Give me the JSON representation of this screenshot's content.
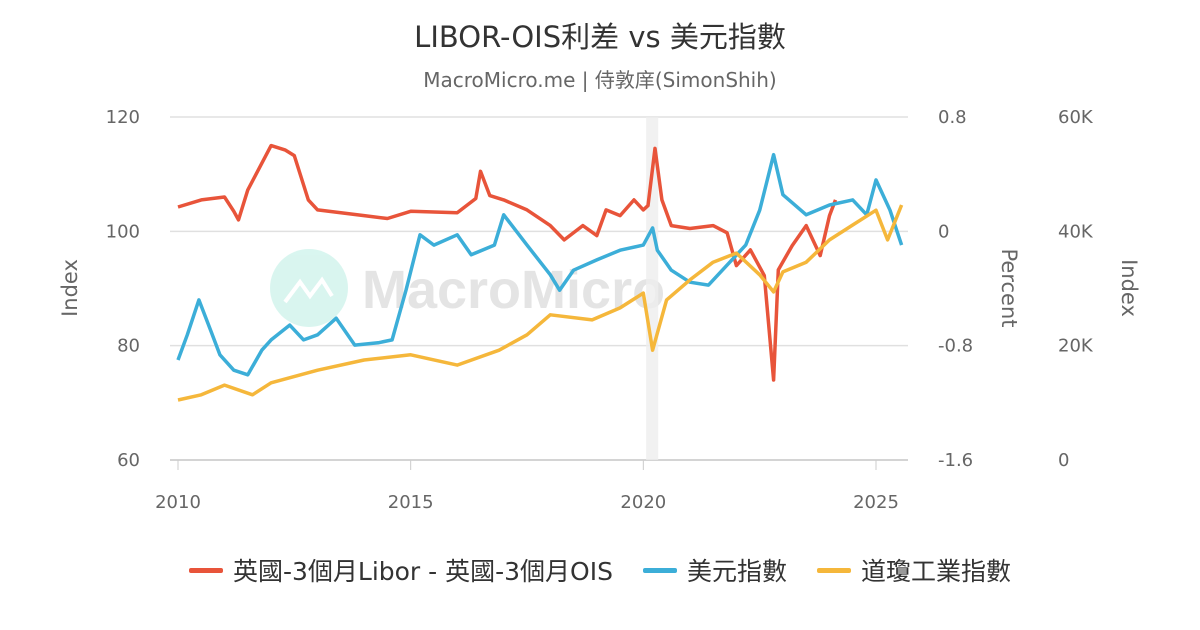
{
  "chart_data": {
    "type": "line",
    "title": "LIBOR-OIS利差 vs 美元指數",
    "subtitle": "MacroMicro.me | 侍敦庠(SimonShih)",
    "watermark": "MacroMicro",
    "x_ticks": [
      "2010",
      "2015",
      "2020",
      "2025"
    ],
    "xlim": [
      2010,
      2025.6
    ],
    "axes": [
      {
        "id": "left",
        "label": "Index",
        "ylim": [
          60,
          120
        ],
        "ticks": [
          "120",
          "100",
          "80",
          "60"
        ]
      },
      {
        "id": "percent",
        "label": "Percent",
        "ylim": [
          -1.6,
          0.8
        ],
        "ticks": [
          "0.8",
          "0",
          "-0.8",
          "-1.6"
        ]
      },
      {
        "id": "right",
        "label": "Index",
        "ylim": [
          0,
          60000
        ],
        "ticks": [
          "60K",
          "40K",
          "20K",
          "0"
        ]
      }
    ],
    "shaded_region": [
      2020.06,
      2020.32
    ],
    "grid": true,
    "legend_position": "bottom",
    "series": [
      {
        "name": "英國-3個月Libor - 英國-3個月OIS",
        "axis": "percent",
        "color": "#e8543a",
        "x": [
          2010.0,
          2010.5,
          2011.0,
          2011.2,
          2011.3,
          2011.5,
          2012.0,
          2012.3,
          2012.5,
          2012.8,
          2013.0,
          2014.0,
          2014.5,
          2015.0,
          2016.0,
          2016.4,
          2016.5,
          2016.7,
          2017.0,
          2017.5,
          2018.0,
          2018.3,
          2018.7,
          2019.0,
          2019.2,
          2019.5,
          2019.8,
          2020.0,
          2020.1,
          2020.25,
          2020.4,
          2020.6,
          2021.0,
          2021.5,
          2021.8,
          2022.0,
          2022.3,
          2022.6,
          2022.8,
          2022.9,
          2023.2,
          2023.5,
          2023.8,
          2024.0,
          2024.13
        ],
        "y": [
          0.17,
          0.22,
          0.24,
          0.14,
          0.08,
          0.29,
          0.6,
          0.57,
          0.53,
          0.22,
          0.15,
          0.11,
          0.09,
          0.14,
          0.13,
          0.23,
          0.42,
          0.25,
          0.22,
          0.15,
          0.04,
          -0.06,
          0.04,
          -0.03,
          0.15,
          0.11,
          0.22,
          0.15,
          0.18,
          0.58,
          0.22,
          0.04,
          0.02,
          0.04,
          -0.01,
          -0.24,
          -0.13,
          -0.31,
          -1.04,
          -0.27,
          -0.1,
          0.04,
          -0.17,
          0.11,
          0.22
        ]
      },
      {
        "name": "美元指數",
        "axis": "left",
        "color": "#3caed8",
        "x": [
          2010.0,
          2010.2,
          2010.45,
          2010.7,
          2010.9,
          2011.2,
          2011.5,
          2011.8,
          2012.0,
          2012.4,
          2012.7,
          2013.0,
          2013.4,
          2013.8,
          2014.3,
          2014.6,
          2014.9,
          2015.2,
          2015.5,
          2016.0,
          2016.3,
          2016.8,
          2017.0,
          2017.5,
          2018.0,
          2018.2,
          2018.5,
          2019.0,
          2019.5,
          2020.0,
          2020.2,
          2020.3,
          2020.6,
          2021.0,
          2021.4,
          2021.8,
          2022.2,
          2022.5,
          2022.8,
          2023.0,
          2023.5,
          2024.0,
          2024.5,
          2024.8,
          2025.0,
          2025.3,
          2025.55
        ],
        "y": [
          77.5,
          81.9,
          88.0,
          82.7,
          78.4,
          75.7,
          74.9,
          79.2,
          81.0,
          83.6,
          81.0,
          81.9,
          84.8,
          80.1,
          80.5,
          81.0,
          89.7,
          99.4,
          97.6,
          99.4,
          95.9,
          97.6,
          102.9,
          97.6,
          92.4,
          89.7,
          93.2,
          95.0,
          96.7,
          97.6,
          100.6,
          96.7,
          93.2,
          91.1,
          90.6,
          94.1,
          97.6,
          103.7,
          113.4,
          106.4,
          102.9,
          104.6,
          105.5,
          102.9,
          109.0,
          103.7,
          97.6
        ]
      },
      {
        "name": "道瓊工業指數",
        "axis": "right",
        "color": "#f5b73b",
        "x": [
          2010.0,
          2010.5,
          2011.0,
          2011.6,
          2012.0,
          2013.0,
          2014.0,
          2015.0,
          2016.0,
          2016.9,
          2017.5,
          2018.0,
          2018.9,
          2019.5,
          2020.0,
          2020.2,
          2020.5,
          2021.0,
          2021.5,
          2022.0,
          2022.5,
          2022.8,
          2023.0,
          2023.5,
          2024.0,
          2024.5,
          2025.0,
          2025.25,
          2025.55
        ],
        "y": [
          10500,
          11400,
          13100,
          11400,
          13500,
          15700,
          17500,
          18400,
          16600,
          19200,
          21900,
          25400,
          24500,
          26600,
          29200,
          19200,
          28000,
          31500,
          34600,
          36200,
          32400,
          29400,
          32900,
          34600,
          38500,
          41100,
          43700,
          38500,
          44600
        ]
      }
    ]
  }
}
